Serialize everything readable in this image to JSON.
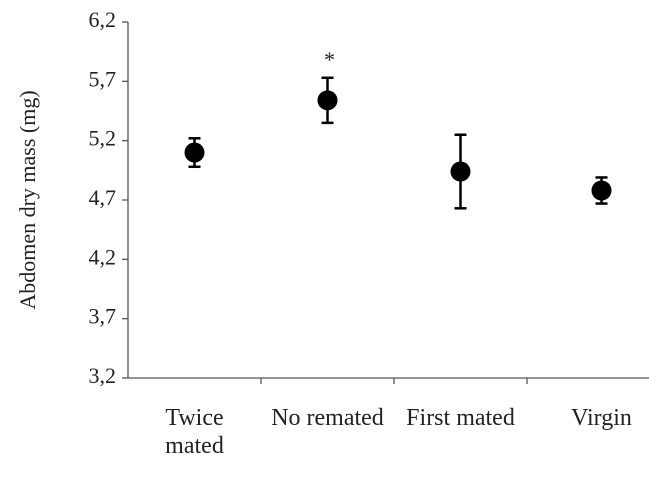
{
  "chart_data": {
    "type": "dot-errorbar",
    "ylabel": "Abdomen dry mass (mg)",
    "categories": [
      "Twice mated",
      "No remated",
      "First mated",
      "Virgin"
    ],
    "values": [
      5.1,
      5.54,
      4.94,
      4.78
    ],
    "errors": [
      0.12,
      0.19,
      0.31,
      0.11
    ],
    "color": "#000000",
    "annotation": "*",
    "ylim": [
      3.2,
      6.2
    ],
    "yticks": [
      {
        "value": 3.2,
        "label": "3,2"
      },
      {
        "value": 3.7,
        "label": "3,7"
      },
      {
        "value": 4.2,
        "label": "4,2"
      },
      {
        "value": 4.7,
        "label": "4,7"
      },
      {
        "value": 5.2,
        "label": "5,2"
      },
      {
        "value": 5.7,
        "label": "5,7"
      },
      {
        "value": 6.2,
        "label": "6,2"
      }
    ]
  }
}
